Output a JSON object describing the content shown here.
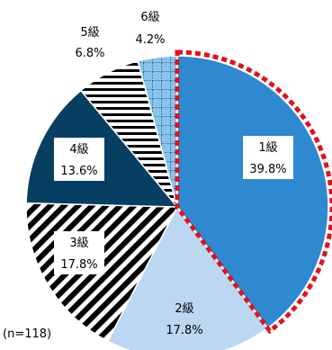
{
  "chart_data": {
    "type": "pie",
    "title": "",
    "sample_size_label": "(n=118)",
    "slices": [
      {
        "name": "1級",
        "value": 39.8,
        "label": "39.8%",
        "fill": "#2e89d0",
        "pattern": "solid",
        "label_color": "#000000",
        "highlighted": true
      },
      {
        "name": "2級",
        "value": 17.8,
        "label": "17.8%",
        "fill": "#bcd7f1",
        "pattern": "solid",
        "label_color": "#000000"
      },
      {
        "name": "3級",
        "value": 17.8,
        "label": "17.8%",
        "fill": "#000000",
        "pattern": "diagonal-stripes",
        "label_color": "#000000"
      },
      {
        "name": "4級",
        "value": 13.6,
        "label": "13.6%",
        "fill": "#073f63",
        "pattern": "solid",
        "label_color": "#000000"
      },
      {
        "name": "5級",
        "value": 6.8,
        "label": "6.8%",
        "fill": "#000000",
        "pattern": "horizontal-stripes",
        "label_color": "#000000"
      },
      {
        "name": "6級",
        "value": 4.2,
        "label": "4.2%",
        "fill": "#87c3ea",
        "pattern": "dotted-grid",
        "label_color": "#000000"
      }
    ],
    "highlight_color": "#e0121c",
    "start_angle_deg": 0,
    "direction": "clockwise",
    "legend": "none"
  }
}
